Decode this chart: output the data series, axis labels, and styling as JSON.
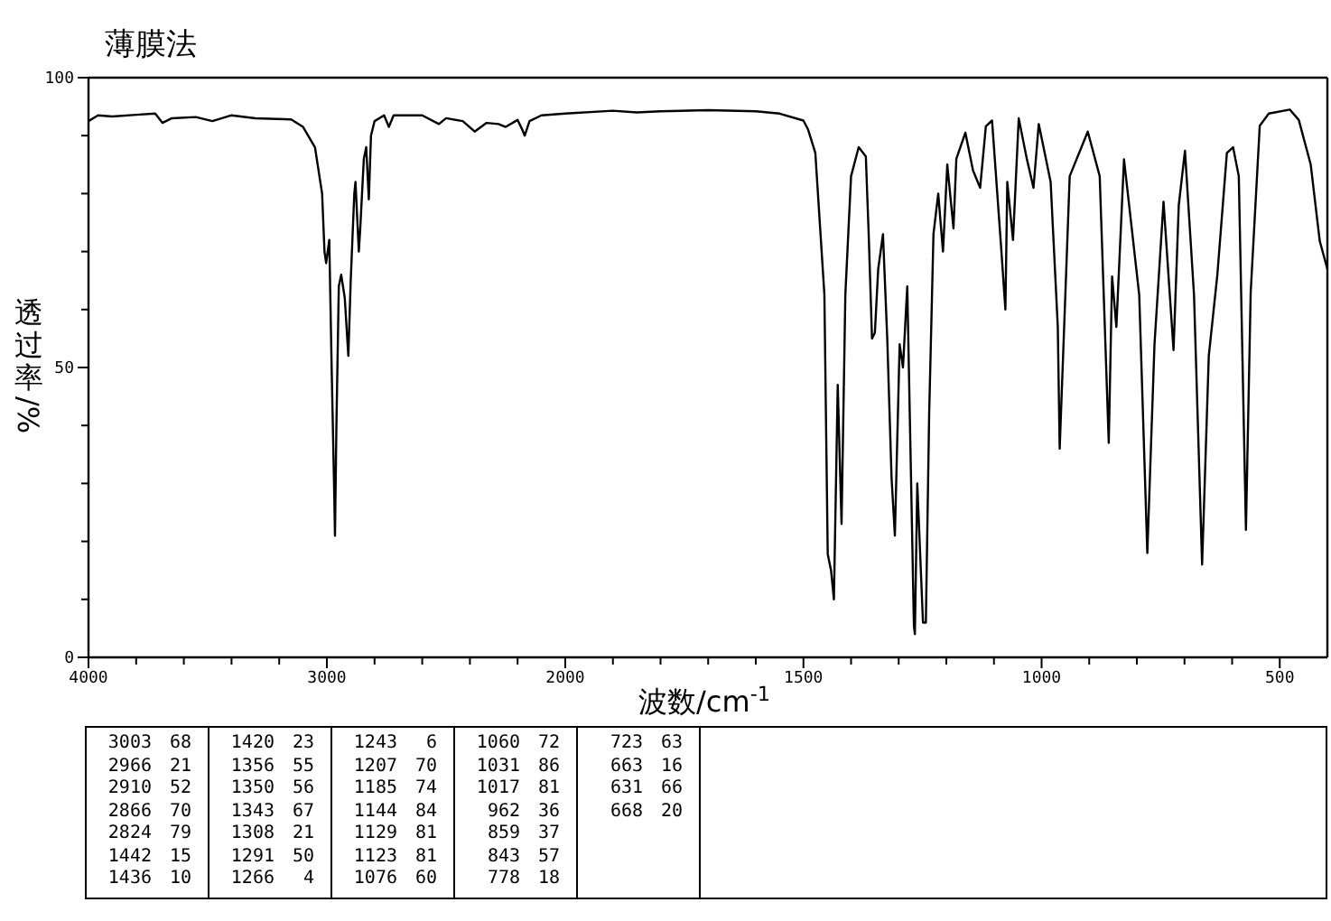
{
  "chart_data": [
    {
      "type": "line",
      "title": "薄膜法",
      "ylabel": "透过率/%",
      "xlim": [
        4000,
        2000
      ],
      "ylim": [
        0,
        100
      ],
      "xticks": [
        4000,
        {
          "value": 3800,
          "label": null
        },
        {
          "value": 3600,
          "label": null
        },
        {
          "value": 3400,
          "label": null
        },
        {
          "value": 3200,
          "label": null
        },
        3000,
        {
          "value": 2800,
          "label": null
        },
        {
          "value": 2600,
          "label": null
        },
        {
          "value": 2400,
          "label": null
        },
        {
          "value": 2200,
          "label": null
        }
      ],
      "yticks": [
        0,
        {
          "value": 10,
          "label": null
        },
        {
          "value": 20,
          "label": null
        },
        {
          "value": 30,
          "label": null
        },
        {
          "value": 40,
          "label": null
        },
        50,
        {
          "value": 60,
          "label": null
        },
        {
          "value": 70,
          "label": null
        },
        {
          "value": 80,
          "label": null
        },
        {
          "value": 90,
          "label": null
        },
        100
      ],
      "series": [
        {
          "color": "#000000",
          "x": [
            4000,
            3960,
            3900,
            3800,
            3720,
            3690,
            3650,
            3550,
            3480,
            3400,
            3300,
            3150,
            3100,
            3050,
            3020,
            3010,
            3003,
            2990,
            2980,
            2970,
            2966,
            2960,
            2950,
            2940,
            2925,
            2910,
            2900,
            2885,
            2880,
            2866,
            2860,
            2845,
            2835,
            2824,
            2815,
            2800,
            2760,
            2740,
            2720,
            2600,
            2530,
            2500,
            2430,
            2380,
            2330,
            2280,
            2250,
            2200,
            2180,
            2170,
            2150,
            2100,
            2000
          ],
          "values": [
            92.5,
            93.5,
            93.3,
            93.6,
            93.8,
            92.2,
            93.0,
            93.2,
            92.5,
            93.5,
            93.0,
            92.8,
            91.5,
            88,
            80,
            70,
            68,
            72,
            50,
            30,
            21,
            40,
            64,
            66,
            62,
            52,
            65,
            80,
            82,
            70,
            74,
            86,
            88,
            79,
            90,
            92.5,
            93.5,
            91.5,
            93.5,
            93.5,
            92,
            93,
            92.5,
            90.7,
            92.2,
            92,
            91.5,
            92.7,
            91,
            90,
            92.5,
            93.5,
            93.8
          ]
        }
      ],
      "annotations": [
        "3003 68",
        "2966 21",
        "2910 52",
        "2866 70",
        "2824 79",
        "1442 15",
        "1436 10",
        "1420 23",
        "1356 55",
        "1350 56",
        "1343 67",
        "1308 21",
        "1291 50",
        "1266 4",
        "1243 6",
        "1207 70",
        "1185 74",
        "1144 84",
        "1129 81",
        "1123 81",
        "1076 60",
        "1060 72",
        "1031 86",
        "1017 81",
        "962 36",
        "859 37",
        "843 57",
        "778 18",
        "723 63",
        "663 16",
        "631 66",
        "668 20"
      ]
    },
    {
      "type": "line",
      "xlabel": "波数/cm$^{-1}$",
      "tick_labels": "x",
      "xlim": [
        2000,
        400
      ],
      "ylim": [
        0,
        100
      ],
      "xticks": [
        2000,
        {
          "value": 1900,
          "label": null
        },
        {
          "value": 1800,
          "label": null
        },
        {
          "value": 1700,
          "label": null
        },
        {
          "value": 1600,
          "label": null
        },
        1500,
        {
          "value": 1400,
          "label": null
        },
        {
          "value": 1300,
          "label": null
        },
        {
          "value": 1200,
          "label": null
        },
        {
          "value": 1100,
          "label": null
        },
        1000,
        {
          "value": 900,
          "label": null
        },
        {
          "value": 800,
          "label": null
        },
        {
          "value": 700,
          "label": null
        },
        {
          "value": 600,
          "label": null
        },
        500
      ],
      "series": [
        {
          "color": "#000000",
          "x": [
            2000,
            1900,
            1850,
            1800,
            1700,
            1600,
            1550,
            1500,
            1490,
            1475,
            1456,
            1449,
            1442,
            1436,
            1428,
            1420,
            1412,
            1400,
            1384,
            1369,
            1363,
            1356,
            1350,
            1343,
            1333,
            1324,
            1315,
            1308,
            1298,
            1291,
            1282,
            1268,
            1266,
            1261,
            1249,
            1243,
            1236,
            1227,
            1217,
            1207,
            1198,
            1185,
            1179,
            1160,
            1144,
            1129,
            1117,
            1104,
            1085,
            1076,
            1072,
            1060,
            1048,
            1031,
            1017,
            1006,
            981,
            966,
            962,
            941,
            903,
            878,
            859,
            852,
            843,
            827,
            795,
            778,
            763,
            744,
            723,
            712,
            699,
            680,
            663,
            649,
            631,
            611,
            598,
            586,
            571,
            561,
            542,
            523,
            479,
            460,
            435,
            416,
            400
          ],
          "values": [
            93.8,
            94.3,
            94,
            94.2,
            94.4,
            94.2,
            93.8,
            92.6,
            91,
            87,
            62.6,
            17.8,
            15,
            10,
            47,
            23,
            62.6,
            83,
            88,
            86.4,
            73,
            55,
            56,
            67,
            73,
            55,
            31,
            21,
            54,
            50,
            64,
            5.4,
            4,
            30,
            6,
            6,
            42,
            73,
            80,
            70,
            85,
            74,
            86,
            90.5,
            84,
            81,
            91.6,
            92.6,
            70.8,
            60,
            82,
            72,
            93,
            86,
            81,
            92,
            82,
            57,
            36,
            83,
            90.7,
            83,
            37,
            65.7,
            57,
            85.9,
            62.5,
            18,
            54,
            78.6,
            53,
            78,
            87.4,
            62.5,
            16,
            52,
            66,
            87,
            88,
            83,
            22,
            63,
            91.7,
            93.8,
            94.5,
            92.7,
            85,
            71.8,
            67
          ]
        }
      ]
    }
  ]
}
